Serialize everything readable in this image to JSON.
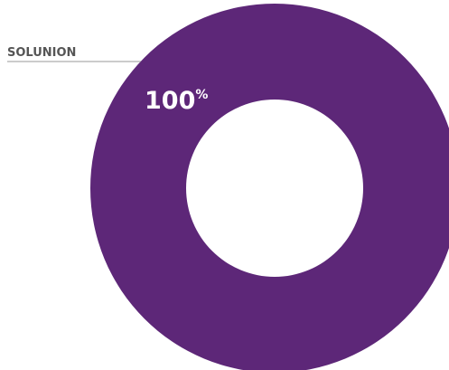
{
  "chart_data": {
    "type": "donut",
    "categories": [
      "SOLUNION"
    ],
    "values": [
      100
    ],
    "value_labels": [
      "100%"
    ],
    "colors": [
      "#5d2778"
    ]
  }
}
